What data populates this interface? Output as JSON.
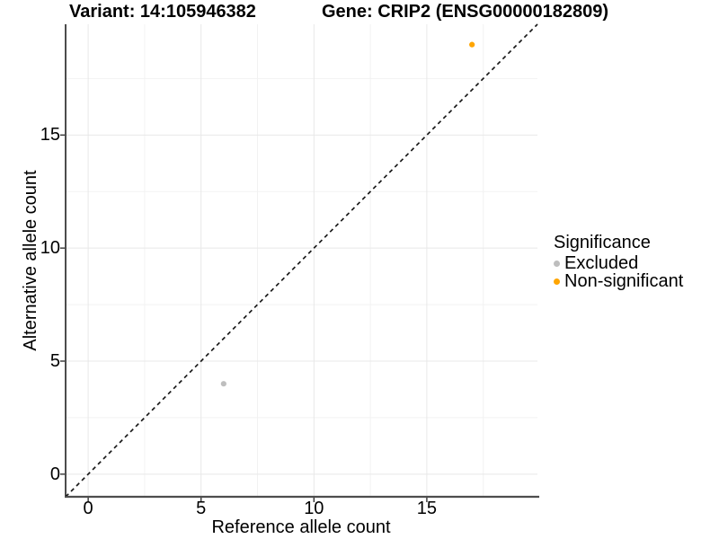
{
  "chart_data": {
    "type": "scatter",
    "title_left": "Variant: 14:105946382",
    "title_right": "Gene: CRIP2 (ENSG00000182809)",
    "xlabel": "Reference allele count",
    "ylabel": "Alternative allele count",
    "xlim": [
      -1,
      19.9
    ],
    "ylim": [
      -1,
      19.9
    ],
    "x_major_ticks": [
      0,
      5,
      10,
      15
    ],
    "y_major_ticks": [
      0,
      5,
      10,
      15
    ],
    "x_minor_ticks": [
      2.5,
      7.5,
      12.5,
      17.5
    ],
    "y_minor_ticks": [
      2.5,
      7.5,
      12.5,
      17.5
    ],
    "grid": "major+minor",
    "identity_line": {
      "style": "dashed",
      "slope": 1,
      "intercept": 0,
      "color": "#1a1a1a"
    },
    "series": [
      {
        "name": "Excluded",
        "color": "#BEBEBE",
        "points": [
          {
            "x": 6,
            "y": 4
          }
        ]
      },
      {
        "name": "Non-significant",
        "color": "#FFA500",
        "points": [
          {
            "x": 17,
            "y": 19
          }
        ]
      }
    ],
    "legend": {
      "title": "Significance",
      "position": "right"
    },
    "style": {
      "grid_major_color": "#E8E8E8",
      "grid_minor_color": "#F2F2F2",
      "axis_line_color": "#333333",
      "left_axis_color": "#000000",
      "bottom_axis_color": "#4d4d4d",
      "tick_color": "#333333",
      "point_radius": 3.1
    }
  }
}
